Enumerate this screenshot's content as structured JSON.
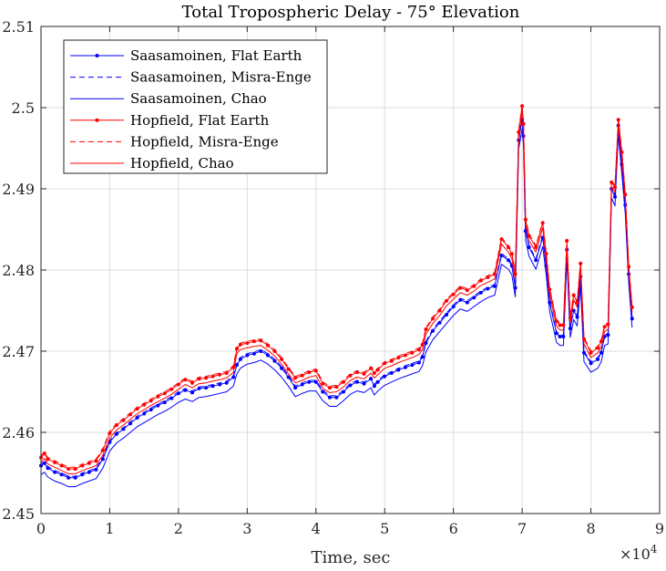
{
  "chart_data": {
    "type": "line",
    "title": "Total Tropospheric Delay - 75° Elevation",
    "xlabel": "Time, sec",
    "ylabel": "",
    "x_exponent_label": "×10",
    "x_exponent_power": "4",
    "xlim": [
      0,
      9
    ],
    "ylim": [
      2.45,
      2.51
    ],
    "x_ticks": [
      0,
      1,
      2,
      3,
      4,
      5,
      6,
      7,
      8,
      9
    ],
    "y_ticks": [
      2.45,
      2.46,
      2.47,
      2.48,
      2.49,
      2.5,
      2.51
    ],
    "x_tick_labels": [
      "0",
      "1",
      "2",
      "3",
      "4",
      "5",
      "6",
      "7",
      "8",
      "9"
    ],
    "y_tick_labels": [
      "2.45",
      "2.46",
      "2.47",
      "2.48",
      "2.49",
      "2.5",
      "2.51"
    ],
    "grid": true,
    "legend_position": "top-left",
    "x": [
      0,
      0.05,
      0.1,
      0.2,
      0.3,
      0.4,
      0.5,
      0.6,
      0.7,
      0.8,
      0.9,
      1.0,
      1.1,
      1.2,
      1.3,
      1.4,
      1.5,
      1.6,
      1.7,
      1.8,
      1.9,
      2.0,
      2.1,
      2.2,
      2.3,
      2.4,
      2.5,
      2.6,
      2.7,
      2.8,
      2.85,
      2.9,
      3.0,
      3.1,
      3.2,
      3.3,
      3.4,
      3.5,
      3.6,
      3.7,
      3.8,
      3.9,
      4.0,
      4.1,
      4.2,
      4.3,
      4.4,
      4.5,
      4.6,
      4.7,
      4.8,
      4.85,
      4.9,
      5.0,
      5.1,
      5.2,
      5.3,
      5.4,
      5.5,
      5.55,
      5.6,
      5.7,
      5.8,
      5.9,
      6.0,
      6.1,
      6.2,
      6.3,
      6.4,
      6.5,
      6.6,
      6.7,
      6.8,
      6.85,
      6.9,
      6.95,
      7.0,
      7.02,
      7.05,
      7.1,
      7.2,
      7.3,
      7.35,
      7.4,
      7.5,
      7.55,
      7.6,
      7.65,
      7.7,
      7.75,
      7.8,
      7.85,
      7.9,
      8.0,
      8.1,
      8.15,
      8.2,
      8.25,
      8.3,
      8.35,
      8.4,
      8.45,
      8.5,
      8.55,
      8.6
    ],
    "series": [
      {
        "name": "Saasamoinen, Flat Earth",
        "color": "#0000ff",
        "style": "solid",
        "marker": "dot",
        "values": [
          2.4559,
          2.4562,
          2.4556,
          2.4551,
          2.4548,
          2.4544,
          2.4544,
          2.4548,
          2.4551,
          2.4554,
          2.4567,
          2.4588,
          2.4598,
          2.4604,
          2.4611,
          2.4618,
          2.4623,
          2.4628,
          2.4633,
          2.4637,
          2.4642,
          2.4648,
          2.4652,
          2.4649,
          2.4654,
          2.4655,
          2.4657,
          2.4659,
          2.4661,
          2.4668,
          2.4683,
          2.469,
          2.4695,
          2.4697,
          2.47,
          2.4695,
          2.4688,
          2.4679,
          2.4668,
          2.4655,
          2.4659,
          2.4662,
          2.4662,
          2.465,
          2.4643,
          2.4643,
          2.465,
          2.4658,
          2.4662,
          2.466,
          2.4666,
          2.4657,
          2.4662,
          2.4669,
          2.4673,
          2.4677,
          2.468,
          2.4683,
          2.4686,
          2.4693,
          2.471,
          2.4725,
          2.4735,
          2.4745,
          2.4755,
          2.4763,
          2.476,
          2.4766,
          2.4772,
          2.4777,
          2.478,
          2.4818,
          2.4812,
          2.4805,
          2.4778,
          2.496,
          2.4985,
          2.4965,
          2.4848,
          2.4828,
          2.4812,
          2.484,
          2.4805,
          2.476,
          2.4722,
          2.4718,
          2.4718,
          2.4825,
          2.4728,
          2.475,
          2.4742,
          2.4792,
          2.4698,
          2.4685,
          2.469,
          2.4698,
          2.4718,
          2.472,
          2.49,
          2.489,
          2.4978,
          2.493,
          2.488,
          2.4795,
          2.474
        ]
      },
      {
        "name": "Saasamoinen, Misra-Enge",
        "color": "#0000ff",
        "style": "dashed",
        "marker": "none",
        "values": [
          2.4561,
          2.4564,
          2.4558,
          2.4553,
          2.455,
          2.4546,
          2.4546,
          2.455,
          2.4553,
          2.4556,
          2.4569,
          2.459,
          2.46,
          2.4606,
          2.4613,
          2.462,
          2.4625,
          2.463,
          2.4635,
          2.4639,
          2.4644,
          2.465,
          2.4654,
          2.4651,
          2.4656,
          2.4657,
          2.4659,
          2.4661,
          2.4663,
          2.467,
          2.4685,
          2.4692,
          2.4697,
          2.4699,
          2.4702,
          2.4697,
          2.469,
          2.4681,
          2.467,
          2.4657,
          2.4661,
          2.4664,
          2.4664,
          2.4652,
          2.4645,
          2.4645,
          2.4652,
          2.466,
          2.4664,
          2.4662,
          2.4668,
          2.4659,
          2.4664,
          2.4671,
          2.4675,
          2.4679,
          2.4682,
          2.4685,
          2.4688,
          2.4695,
          2.4712,
          2.4727,
          2.4737,
          2.4747,
          2.4757,
          2.4765,
          2.4762,
          2.4768,
          2.4774,
          2.4779,
          2.4782,
          2.482,
          2.4814,
          2.4807,
          2.478,
          2.4962,
          2.4987,
          2.4967,
          2.485,
          2.483,
          2.4814,
          2.4842,
          2.4807,
          2.4762,
          2.4724,
          2.472,
          2.472,
          2.4827,
          2.473,
          2.4752,
          2.4744,
          2.4794,
          2.47,
          2.4687,
          2.4692,
          2.47,
          2.472,
          2.4722,
          2.4902,
          2.4892,
          2.498,
          2.4932,
          2.4882,
          2.4797,
          2.4742
        ]
      },
      {
        "name": "Saasamoinen, Chao",
        "color": "#0000ff",
        "style": "solid",
        "marker": "none",
        "values": [
          2.4548,
          2.4551,
          2.4545,
          2.454,
          2.4537,
          2.4533,
          2.4533,
          2.4537,
          2.454,
          2.4543,
          2.4556,
          2.4577,
          2.4587,
          2.4593,
          2.46,
          2.4607,
          2.4612,
          2.4617,
          2.4622,
          2.4626,
          2.4631,
          2.4637,
          2.4641,
          2.4638,
          2.4643,
          2.4644,
          2.4646,
          2.4648,
          2.465,
          2.4657,
          2.4672,
          2.4679,
          2.4684,
          2.4686,
          2.4689,
          2.4684,
          2.4677,
          2.4668,
          2.4657,
          2.4644,
          2.4648,
          2.4651,
          2.4651,
          2.4639,
          2.4632,
          2.4632,
          2.4639,
          2.4647,
          2.4651,
          2.4649,
          2.4655,
          2.4646,
          2.4651,
          2.4658,
          2.4662,
          2.4666,
          2.4669,
          2.4672,
          2.4675,
          2.4682,
          2.4699,
          2.4714,
          2.4724,
          2.4734,
          2.4744,
          2.4752,
          2.4749,
          2.4755,
          2.4761,
          2.4766,
          2.4769,
          2.4807,
          2.4801,
          2.4794,
          2.4767,
          2.4949,
          2.4974,
          2.4954,
          2.4837,
          2.4817,
          2.4801,
          2.4829,
          2.4794,
          2.4749,
          2.4711,
          2.4707,
          2.4707,
          2.4814,
          2.4717,
          2.4739,
          2.4731,
          2.4781,
          2.4687,
          2.4674,
          2.4679,
          2.4687,
          2.4707,
          2.4709,
          2.4889,
          2.4879,
          2.4967,
          2.4919,
          2.4869,
          2.4784,
          2.4729
        ]
      },
      {
        "name": "Hopfield, Flat Earth",
        "color": "#ff0000",
        "style": "solid",
        "marker": "dot",
        "values": [
          2.4569,
          2.4574,
          2.4567,
          2.4563,
          2.4559,
          2.4555,
          2.4555,
          2.4559,
          2.4562,
          2.4565,
          2.4578,
          2.4599,
          2.4609,
          2.4615,
          2.4622,
          2.4629,
          2.4634,
          2.4639,
          2.4644,
          2.4648,
          2.4653,
          2.4659,
          2.4665,
          2.4661,
          2.4666,
          2.4667,
          2.4669,
          2.4671,
          2.4673,
          2.468,
          2.4703,
          2.4708,
          2.471,
          2.4712,
          2.4713,
          2.4707,
          2.47,
          2.469,
          2.4678,
          2.4667,
          2.467,
          2.4674,
          2.4676,
          2.466,
          2.4655,
          2.4656,
          2.4662,
          2.467,
          2.4674,
          2.4672,
          2.4679,
          2.4673,
          2.4677,
          2.4685,
          2.4688,
          2.4692,
          2.4695,
          2.4698,
          2.4702,
          2.4708,
          2.4727,
          2.474,
          2.475,
          2.4762,
          2.477,
          2.4778,
          2.4775,
          2.478,
          2.4787,
          2.4791,
          2.4795,
          2.4838,
          2.4828,
          2.482,
          2.4795,
          2.497,
          2.5002,
          2.498,
          2.4862,
          2.4842,
          2.4828,
          2.4858,
          2.482,
          2.4776,
          2.4737,
          2.4732,
          2.4732,
          2.4836,
          2.4741,
          2.4769,
          2.476,
          2.4808,
          2.4715,
          2.4698,
          2.4704,
          2.4712,
          2.473,
          2.4733,
          2.4908,
          2.4902,
          2.4985,
          2.4945,
          2.4893,
          2.4804,
          2.4754
        ]
      },
      {
        "name": "Hopfield, Misra-Enge",
        "color": "#ff0000",
        "style": "dashed",
        "marker": "none",
        "values": [
          2.4571,
          2.4576,
          2.4569,
          2.4565,
          2.4561,
          2.4557,
          2.4557,
          2.4561,
          2.4564,
          2.4567,
          2.458,
          2.4601,
          2.4611,
          2.4617,
          2.4624,
          2.4631,
          2.4636,
          2.4641,
          2.4646,
          2.465,
          2.4655,
          2.4661,
          2.4667,
          2.4663,
          2.4668,
          2.4669,
          2.4671,
          2.4673,
          2.4675,
          2.4682,
          2.4705,
          2.471,
          2.4712,
          2.4714,
          2.4715,
          2.4709,
          2.4702,
          2.4692,
          2.468,
          2.4669,
          2.4672,
          2.4676,
          2.4678,
          2.4662,
          2.4657,
          2.4658,
          2.4664,
          2.4672,
          2.4676,
          2.4674,
          2.4681,
          2.4675,
          2.4679,
          2.4687,
          2.469,
          2.4694,
          2.4697,
          2.47,
          2.4704,
          2.471,
          2.4729,
          2.4742,
          2.4752,
          2.4764,
          2.4772,
          2.478,
          2.4777,
          2.4782,
          2.4789,
          2.4793,
          2.4797,
          2.484,
          2.483,
          2.4822,
          2.4797,
          2.4972,
          2.5004,
          2.4982,
          2.4864,
          2.4844,
          2.483,
          2.486,
          2.4822,
          2.4778,
          2.4739,
          2.4734,
          2.4734,
          2.4838,
          2.4743,
          2.4771,
          2.4762,
          2.481,
          2.4717,
          2.47,
          2.4706,
          2.4714,
          2.4732,
          2.4735,
          2.491,
          2.4904,
          2.4987,
          2.4947,
          2.4895,
          2.4806,
          2.4756
        ]
      },
      {
        "name": "Hopfield, Chao",
        "color": "#ff0000",
        "style": "solid",
        "marker": "none",
        "values": [
          2.4563,
          2.4568,
          2.4561,
          2.4557,
          2.4553,
          2.4549,
          2.4549,
          2.4553,
          2.4556,
          2.4559,
          2.4572,
          2.4593,
          2.4603,
          2.4609,
          2.4616,
          2.4623,
          2.4628,
          2.4633,
          2.4638,
          2.4642,
          2.4647,
          2.4653,
          2.4659,
          2.4655,
          2.466,
          2.4661,
          2.4663,
          2.4665,
          2.4667,
          2.4674,
          2.4697,
          2.4702,
          2.4704,
          2.4706,
          2.4707,
          2.4701,
          2.4694,
          2.4684,
          2.4672,
          2.4661,
          2.4664,
          2.4668,
          2.467,
          2.4654,
          2.4649,
          2.465,
          2.4656,
          2.4664,
          2.4668,
          2.4666,
          2.4673,
          2.4667,
          2.4671,
          2.4679,
          2.4682,
          2.4686,
          2.4689,
          2.4692,
          2.4696,
          2.4702,
          2.4721,
          2.4734,
          2.4744,
          2.4756,
          2.4764,
          2.4772,
          2.4769,
          2.4774,
          2.4781,
          2.4785,
          2.4789,
          2.4832,
          2.4822,
          2.4814,
          2.4789,
          2.4964,
          2.4996,
          2.4974,
          2.4856,
          2.4836,
          2.4822,
          2.4852,
          2.4814,
          2.477,
          2.4731,
          2.4726,
          2.4726,
          2.483,
          2.4735,
          2.4763,
          2.4754,
          2.4802,
          2.4709,
          2.4692,
          2.4698,
          2.4706,
          2.4724,
          2.4727,
          2.4902,
          2.4896,
          2.4979,
          2.4939,
          2.4887,
          2.4798,
          2.4748
        ]
      }
    ]
  }
}
